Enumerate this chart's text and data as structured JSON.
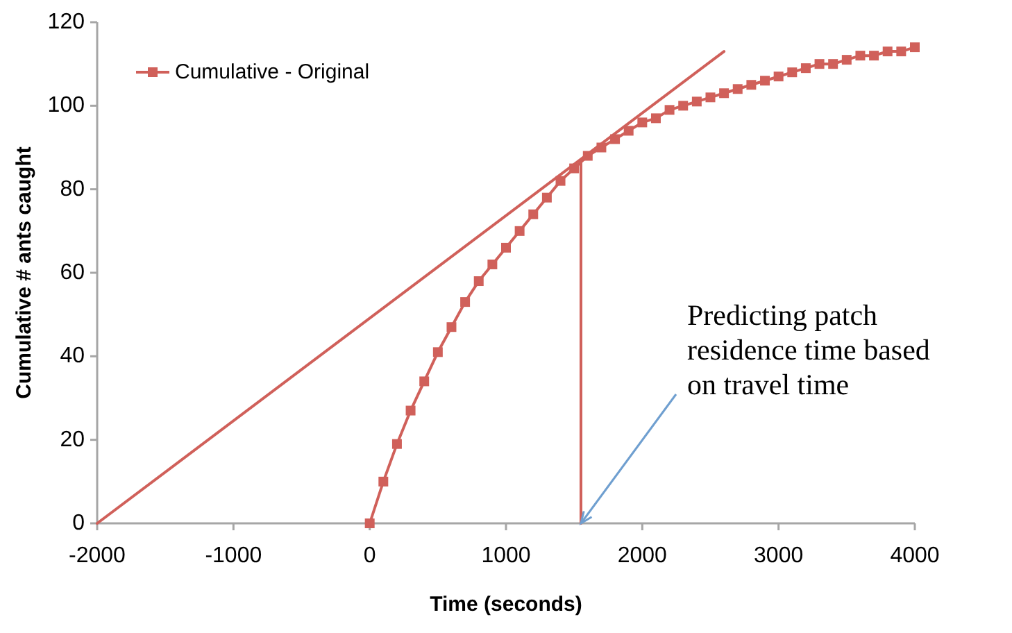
{
  "chart_data": {
    "type": "line",
    "xlabel": "Time (seconds)",
    "ylabel": "Cumulative # ants caught",
    "xlim": [
      -2000,
      4000
    ],
    "xticks": [
      -2000,
      -1000,
      0,
      1000,
      2000,
      3000,
      4000
    ],
    "ylim": [
      0,
      120
    ],
    "yticks": [
      0,
      20,
      40,
      60,
      80,
      100,
      120
    ],
    "grid": false,
    "legend": "top left",
    "series": [
      {
        "name": "Cumulative - Original",
        "color": "#d0605a",
        "marker": "square",
        "x": [
          0,
          100,
          200,
          300,
          400,
          500,
          600,
          700,
          800,
          900,
          1000,
          1100,
          1200,
          1300,
          1400,
          1500,
          1600,
          1700,
          1800,
          1900,
          2000,
          2100,
          2200,
          2300,
          2400,
          2500,
          2600,
          2700,
          2800,
          2900,
          3000,
          3100,
          3200,
          3300,
          3400,
          3500,
          3600,
          3700,
          3800,
          3900,
          4000
        ],
        "values": [
          0,
          10,
          19,
          27,
          34,
          41,
          47,
          53,
          58,
          62,
          66,
          70,
          74,
          78,
          82,
          85,
          88,
          90,
          92,
          94,
          96,
          97,
          99,
          100,
          101,
          102,
          103,
          104,
          105,
          106,
          107,
          108,
          109,
          110,
          110,
          111,
          112,
          112,
          113,
          113,
          114
        ]
      },
      {
        "color": "#d0605a",
        "marker": "none",
        "x": [
          -2000,
          2600
        ],
        "values": [
          0,
          113
        ]
      },
      {
        "color": "#d0605a",
        "marker": "none",
        "x": [
          1550,
          1550
        ],
        "values": [
          0,
          87
        ]
      }
    ],
    "annotations": [
      {
        "text": "Predicting patch residence time based on travel time",
        "x": 1550,
        "y": 0
      }
    ]
  }
}
